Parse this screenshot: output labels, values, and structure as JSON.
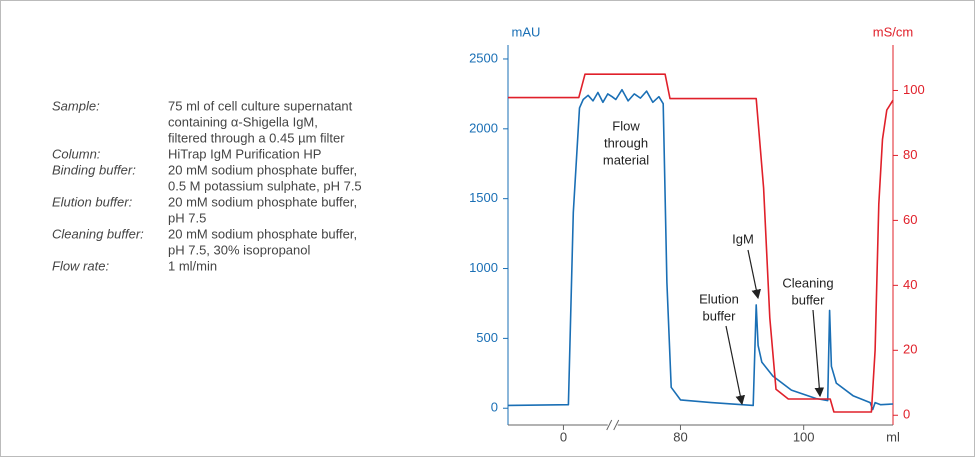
{
  "method": [
    {
      "label": "Sample:",
      "lines": [
        "75 ml of cell culture supernatant",
        "containing α-Shigella IgM,",
        "filtered through a 0.45 µm filter"
      ]
    },
    {
      "label": "Column:",
      "lines": [
        "HiTrap IgM Purification HP"
      ]
    },
    {
      "label": "Binding buffer:",
      "lines": [
        "20 mM sodium phosphate buffer,",
        "0.5 M potassium sulphate, pH 7.5"
      ]
    },
    {
      "label": "Elution buffer:",
      "lines": [
        "20 mM sodium phosphate buffer,",
        "pH 7.5"
      ]
    },
    {
      "label": "Cleaning buffer:",
      "lines": [
        "20 mM sodium phosphate buffer,",
        "pH 7.5, 30% isopropanol"
      ]
    },
    {
      "label": "Flow rate:",
      "lines": [
        "1 ml/min"
      ]
    }
  ],
  "chart_data": {
    "type": "line",
    "ylabel": "mAU",
    "y2label": "mS/cm",
    "xlabel": "ml",
    "xlim": [
      -9,
      114.5
    ],
    "xbreak": [
      8,
      69
    ],
    "xticks": [
      0,
      80,
      100
    ],
    "ylim": [
      -120,
      2600
    ],
    "yticks": [
      0,
      500,
      1000,
      1500,
      2000,
      2500
    ],
    "y2lim": [
      -3,
      114
    ],
    "y2ticks": [
      0,
      20,
      40,
      60,
      80,
      100
    ],
    "series": [
      {
        "name": "mAU",
        "color": "#1a6fb5",
        "x": [
          -9,
          0.8,
          1.6,
          2.6,
          3.2,
          4,
          4.8,
          5.6,
          6.4,
          7.2,
          7.9,
          69.5,
          70.5,
          71.5,
          72.5,
          73.5,
          74.5,
          75.5,
          76.5,
          77.2,
          77.8,
          78.5,
          80,
          85,
          90,
          91.8,
          92.3,
          92.6,
          93.2,
          95,
          98,
          102,
          103.9,
          104.2,
          104.5,
          105.3,
          108,
          110.8,
          111.2,
          111.6,
          112.5,
          114.5
        ],
        "values": [
          20,
          25,
          1400,
          2150,
          2210,
          2240,
          2200,
          2260,
          2190,
          2250,
          2230,
          2210,
          2280,
          2200,
          2250,
          2220,
          2270,
          2190,
          2230,
          2180,
          900,
          150,
          60,
          40,
          25,
          20,
          740,
          450,
          330,
          230,
          130,
          70,
          55,
          700,
          300,
          180,
          90,
          40,
          -10,
          40,
          25,
          30
        ]
      },
      {
        "name": "mS/cm",
        "color": "#e0202a",
        "axis": "y2",
        "x": [
          -9,
          2.5,
          3.5,
          77.5,
          78.3,
          92.3,
          93.5,
          94.5,
          95.5,
          97.5,
          104.3,
          104.9,
          111,
          111.6,
          112.2,
          112.8,
          113.5,
          114.5
        ],
        "values": [
          97.8,
          97.8,
          105,
          105,
          97.5,
          97.5,
          70,
          30,
          8,
          5,
          5,
          1,
          1,
          20,
          65,
          85,
          94,
          97
        ]
      }
    ],
    "annotations": [
      [
        "Flow",
        "through",
        "material"
      ],
      [
        "IgM"
      ],
      [
        "Elution",
        "buffer"
      ],
      [
        "Cleaning",
        "buffer"
      ]
    ]
  }
}
